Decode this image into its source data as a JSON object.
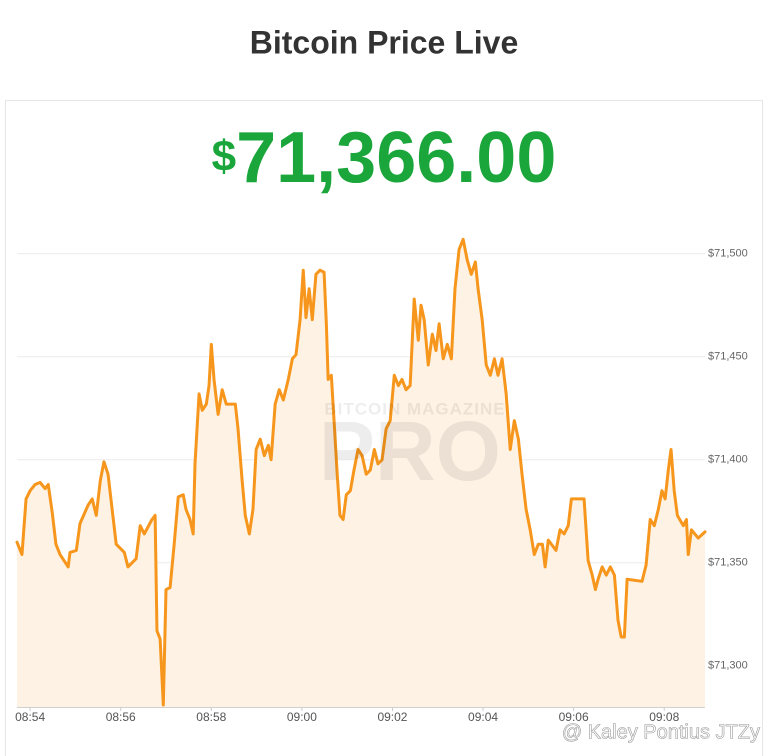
{
  "header": {
    "title": "Bitcoin Price Live",
    "currency": "$",
    "price": "71,366.00"
  },
  "watermark": [
    "BITCOIN MAGAZINE",
    "PRO"
  ],
  "credit": "@ Kaley Pontius JTZy",
  "chart_data": {
    "type": "line",
    "color": "#f7961c",
    "fill": "#fdf2e4",
    "grid": true,
    "x": [
      533.71,
      533.82,
      533.91,
      534.0,
      534.11,
      534.22,
      534.33,
      534.4,
      534.49,
      534.57,
      534.66,
      534.75,
      534.84,
      534.88,
      535.02,
      535.1,
      535.28,
      535.37,
      535.46,
      535.55,
      535.63,
      535.72,
      535.81,
      535.9,
      536.08,
      536.16,
      536.34,
      536.43,
      536.52,
      536.69,
      536.76,
      536.8,
      536.87,
      536.94,
      537.0,
      537.09,
      537.18,
      537.27,
      537.38,
      537.44,
      537.53,
      537.6,
      537.64,
      537.73,
      537.8,
      537.89,
      537.95,
      538.0,
      538.06,
      538.15,
      538.24,
      538.33,
      538.53,
      538.59,
      538.68,
      538.75,
      538.84,
      538.92,
      538.99,
      539.08,
      539.17,
      539.26,
      539.32,
      539.41,
      539.5,
      539.59,
      539.7,
      539.79,
      539.87,
      539.96,
      540.03,
      540.09,
      540.16,
      540.23,
      540.31,
      540.4,
      540.49,
      540.54,
      540.58,
      540.65,
      540.71,
      540.78,
      540.84,
      540.91,
      540.98,
      541.07,
      541.15,
      541.24,
      541.33,
      541.42,
      541.51,
      541.6,
      541.68,
      541.77,
      541.86,
      541.95,
      542.04,
      542.13,
      542.21,
      542.3,
      542.39,
      542.48,
      542.57,
      542.63,
      542.7,
      542.79,
      542.88,
      542.96,
      543.03,
      543.12,
      543.21,
      543.3,
      543.38,
      543.47,
      543.56,
      543.65,
      543.74,
      543.83,
      543.89,
      543.98,
      544.07,
      544.16,
      544.25,
      544.33,
      544.42,
      544.51,
      544.6,
      544.69,
      544.78,
      544.86,
      544.95,
      545.04,
      545.13,
      545.22,
      545.31,
      545.37,
      545.44,
      545.61,
      545.7,
      545.79,
      545.88,
      545.95,
      546.23,
      546.32,
      546.41,
      546.48,
      546.54,
      546.63,
      546.72,
      546.81,
      546.9,
      546.98,
      547.05,
      547.12,
      547.18,
      547.51,
      547.6,
      547.69,
      547.78,
      547.87,
      547.95,
      548.02,
      548.09,
      548.15,
      548.22,
      548.29,
      548.42,
      548.49,
      548.53,
      548.6,
      548.75,
      548.9
    ],
    "series": [
      {
        "name": "Bitcoin",
        "color": "#f7961c",
        "values": [
          71360,
          71354,
          71381,
          71385,
          71388,
          71389,
          71386,
          71388,
          71374,
          71359,
          71354,
          71351,
          71348,
          71355,
          71356,
          71369,
          71378,
          71381,
          71373,
          71390,
          71399,
          71393,
          71376,
          71359,
          71355,
          71348,
          71352,
          71368,
          71364,
          71371,
          71373,
          71317,
          71313,
          71281,
          71337,
          71338,
          71359,
          71382,
          71383,
          71376,
          71371,
          71364,
          71398,
          71432,
          71424,
          71427,
          71436,
          71456,
          71439,
          71422,
          71434,
          71427,
          71427,
          71415,
          71390,
          71373,
          71364,
          71376,
          71405,
          71410,
          71402,
          71407,
          71400,
          71427,
          71434,
          71429,
          71439,
          71449,
          71451,
          71468,
          71492,
          71469,
          71483,
          71468,
          71490,
          71492,
          71491,
          71466,
          71439,
          71441,
          71419,
          71393,
          71373,
          71371,
          71383,
          71385,
          71395,
          71405,
          71402,
          71393,
          71395,
          71405,
          71398,
          71400,
          71415,
          71419,
          71441,
          71436,
          71439,
          71434,
          71436,
          71478,
          71458,
          71475,
          71468,
          71446,
          71461,
          71453,
          71466,
          71449,
          71456,
          71449,
          71483,
          71502,
          71507,
          71497,
          71490,
          71496,
          71483,
          71468,
          71446,
          71441,
          71449,
          71441,
          71449,
          71432,
          71405,
          71419,
          71410,
          71393,
          71376,
          71366,
          71354,
          71359,
          71359,
          71348,
          71361,
          71356,
          71366,
          71364,
          71368,
          71381,
          71381,
          71351,
          71344,
          71337,
          71342,
          71348,
          71344,
          71348,
          71344,
          71322,
          71314,
          71314,
          71342,
          71341,
          71349,
          71371,
          71368,
          71376,
          71385,
          71381,
          71395,
          71405,
          71385,
          71373,
          71368,
          71371,
          71354,
          71366,
          71362,
          71365
        ]
      }
    ],
    "xlim": [
      533.71,
      548.9
    ],
    "xticks": [
      {
        "value": 534,
        "label": "08:54"
      },
      {
        "value": 536,
        "label": "08:56"
      },
      {
        "value": 538,
        "label": "08:58"
      },
      {
        "value": 540,
        "label": "09:00"
      },
      {
        "value": 542,
        "label": "09:02"
      },
      {
        "value": 544,
        "label": "09:04"
      },
      {
        "value": 546,
        "label": "09:06"
      },
      {
        "value": 548,
        "label": "09:08"
      }
    ],
    "ylim": [
      71280,
      71512
    ],
    "yticks": [
      {
        "value": 71300,
        "label": "$71,300"
      },
      {
        "value": 71350,
        "label": "$71,350"
      },
      {
        "value": 71400,
        "label": "$71,400"
      },
      {
        "value": 71450,
        "label": "$71,450"
      },
      {
        "value": 71500,
        "label": "$71,500"
      }
    ]
  }
}
